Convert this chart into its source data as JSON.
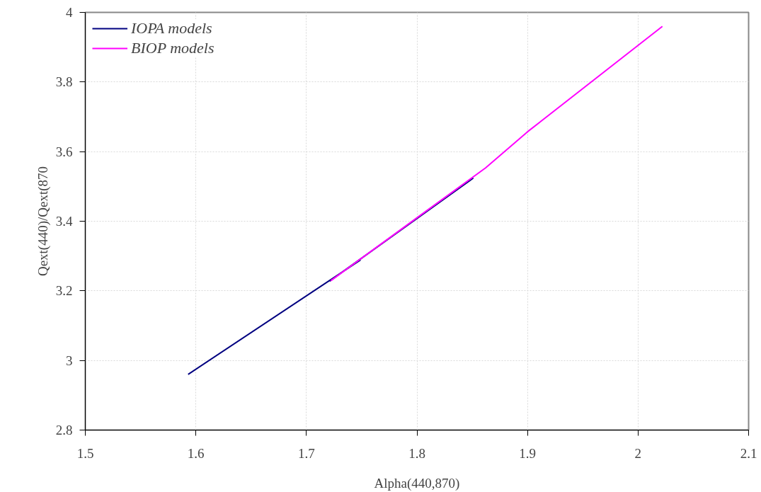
{
  "chart_data": {
    "type": "line",
    "xlabel": "Alpha(440,870)",
    "ylabel": "Qext(440)/Qext(870",
    "xlim": [
      1.5,
      2.1
    ],
    "xticks": [
      1.5,
      1.6,
      1.7,
      1.8,
      1.9,
      2,
      2.1
    ],
    "ylim": [
      2.8,
      4
    ],
    "yticks": [
      2.8,
      3,
      3.2,
      3.4,
      3.6,
      3.8,
      4
    ],
    "grid": true,
    "legend": "top left",
    "marker": "none",
    "line_style": "solid",
    "series": [
      {
        "name": "IOPA models",
        "color": "#000080",
        "x": [
          1.593,
          1.749,
          null,
          1.721,
          1.851
        ],
        "values": [
          2.96,
          3.289,
          null,
          3.228,
          3.524
        ]
      },
      {
        "name": "BIOP models",
        "color": "#ff00ff",
        "x": [
          1.722,
          1.8,
          1.862,
          1.9,
          2.022
        ],
        "values": [
          3.229,
          3.41,
          3.553,
          3.657,
          3.96
        ]
      }
    ]
  }
}
